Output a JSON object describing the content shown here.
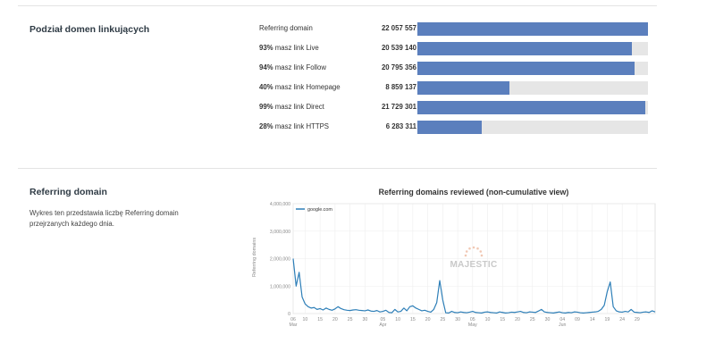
{
  "section1": {
    "title": "Podział domen linkujących",
    "rows": [
      {
        "pct": "",
        "label": "Referring domain",
        "value": "22 057 557",
        "fraction": 1.0
      },
      {
        "pct": "93%",
        "label": "masz link Live",
        "value": "20 539 140",
        "fraction": 0.93
      },
      {
        "pct": "94%",
        "label": "masz link Follow",
        "value": "20 795 356",
        "fraction": 0.94
      },
      {
        "pct": "40%",
        "label": "masz link Homepage",
        "value": "8 859 137",
        "fraction": 0.4
      },
      {
        "pct": "99%",
        "label": "masz link Direct",
        "value": "21 729 301",
        "fraction": 0.99
      },
      {
        "pct": "28%",
        "label": "masz link HTTPS",
        "value": "6 283 311",
        "fraction": 0.28
      }
    ]
  },
  "section2": {
    "title": "Referring domain",
    "description": "Wykres ten przedstawia liczbę Referring domain przejrzanych każdego dnia."
  },
  "chart_data": {
    "type": "line",
    "title": "Referring domains reviewed (non-cumulative view)",
    "ylabel": "Referring domains",
    "xlabel": "",
    "ylim": [
      0,
      4000000
    ],
    "yticks": [
      "0",
      "1,000,000",
      "2,000,000",
      "3,000,000",
      "4,000,000"
    ],
    "ytick_values": [
      0,
      1000000,
      2000000,
      3000000,
      4000000
    ],
    "xticks": [
      {
        "label": "06",
        "sub": "Mar",
        "i": 0
      },
      {
        "label": "10",
        "sub": "",
        "i": 4
      },
      {
        "label": "15",
        "sub": "",
        "i": 9
      },
      {
        "label": "20",
        "sub": "",
        "i": 14
      },
      {
        "label": "25",
        "sub": "",
        "i": 19
      },
      {
        "label": "30",
        "sub": "",
        "i": 24
      },
      {
        "label": "05",
        "sub": "Apr",
        "i": 30
      },
      {
        "label": "10",
        "sub": "",
        "i": 35
      },
      {
        "label": "15",
        "sub": "",
        "i": 40
      },
      {
        "label": "20",
        "sub": "",
        "i": 45
      },
      {
        "label": "25",
        "sub": "",
        "i": 50
      },
      {
        "label": "30",
        "sub": "",
        "i": 55
      },
      {
        "label": "05",
        "sub": "May",
        "i": 60
      },
      {
        "label": "10",
        "sub": "",
        "i": 65
      },
      {
        "label": "15",
        "sub": "",
        "i": 70
      },
      {
        "label": "20",
        "sub": "",
        "i": 75
      },
      {
        "label": "25",
        "sub": "",
        "i": 80
      },
      {
        "label": "30",
        "sub": "",
        "i": 85
      },
      {
        "label": "04",
        "sub": "Jun",
        "i": 90
      },
      {
        "label": "09",
        "sub": "",
        "i": 95
      },
      {
        "label": "14",
        "sub": "",
        "i": 100
      },
      {
        "label": "19",
        "sub": "",
        "i": 105
      },
      {
        "label": "24",
        "sub": "",
        "i": 110
      },
      {
        "label": "29",
        "sub": "",
        "i": 115
      }
    ],
    "series": [
      {
        "name": "google.com",
        "values": [
          2000000,
          1000000,
          1500000,
          600000,
          350000,
          250000,
          200000,
          220000,
          150000,
          180000,
          130000,
          200000,
          150000,
          120000,
          170000,
          250000,
          180000,
          140000,
          120000,
          110000,
          130000,
          140000,
          120000,
          110000,
          100000,
          130000,
          90000,
          80000,
          110000,
          60000,
          80000,
          120000,
          40000,
          30000,
          150000,
          60000,
          80000,
          200000,
          100000,
          250000,
          280000,
          200000,
          150000,
          100000,
          120000,
          80000,
          50000,
          150000,
          400000,
          1200000,
          500000,
          30000,
          20000,
          80000,
          40000,
          30000,
          60000,
          40000,
          30000,
          50000,
          80000,
          40000,
          30000,
          20000,
          50000,
          60000,
          40000,
          30000,
          20000,
          60000,
          40000,
          20000,
          30000,
          50000,
          40000,
          60000,
          80000,
          40000,
          30000,
          60000,
          50000,
          40000,
          90000,
          150000,
          60000,
          40000,
          30000,
          20000,
          40000,
          60000,
          30000,
          20000,
          40000,
          30000,
          60000,
          50000,
          30000,
          20000,
          30000,
          40000,
          50000,
          60000,
          80000,
          150000,
          300000,
          800000,
          1150000,
          250000,
          100000,
          60000,
          50000,
          80000,
          60000,
          150000,
          50000,
          40000,
          30000,
          50000,
          60000,
          40000,
          100000,
          60000
        ]
      }
    ],
    "watermark": "MAJESTIC",
    "line_color": "#2e7fb8"
  }
}
